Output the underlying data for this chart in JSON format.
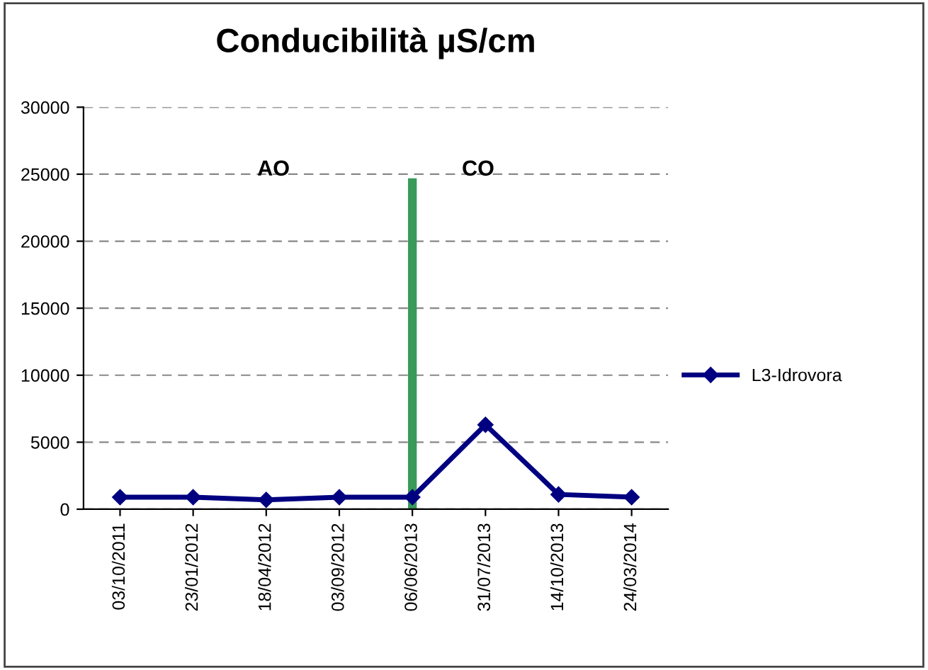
{
  "chart_data": {
    "type": "line",
    "title": "Conducibilità µS/cm",
    "categories": [
      "03/10/2011",
      "23/01/2012",
      "18/04/2012",
      "03/09/2012",
      "06/06/2013",
      "31/07/2013",
      "14/10/2013",
      "24/03/2014"
    ],
    "series": [
      {
        "name": "L3-Idrovora",
        "color": "#000080",
        "values": [
          900,
          900,
          700,
          900,
          900,
          6300,
          1100,
          900
        ]
      },
      {
        "type": "bar",
        "color": "#3a9a5a",
        "values": [
          null,
          null,
          null,
          null,
          24700,
          null,
          null,
          null
        ]
      }
    ],
    "ylim": [
      0,
      30000
    ],
    "yticks": [
      0,
      5000,
      10000,
      15000,
      20000,
      25000,
      30000
    ],
    "grid": "y",
    "legend": "right",
    "marker": "diamond",
    "line_style": "solid",
    "annotations": [
      "AO",
      "CO"
    ]
  }
}
